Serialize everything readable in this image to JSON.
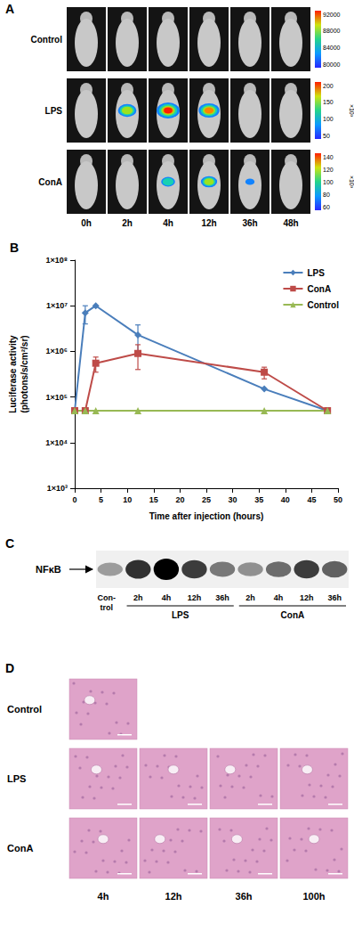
{
  "panel_labels": [
    "A",
    "B",
    "C",
    "D"
  ],
  "imaging": {
    "times": [
      "0h",
      "2h",
      "4h",
      "12h",
      "36h",
      "48h"
    ],
    "rows": [
      {
        "label": "Control",
        "signal": [
          0,
          0,
          0,
          0,
          0,
          0
        ],
        "colorbar": [
          "92000",
          "88000",
          "84000",
          "80000"
        ]
      },
      {
        "label": "LPS",
        "signal": [
          0,
          0.8,
          1,
          0.9,
          0,
          0
        ],
        "colorbar": [
          "200",
          "150",
          "100",
          "50"
        ],
        "colorbar_unit": "×10³"
      },
      {
        "label": "ConA",
        "signal": [
          0,
          0,
          0.6,
          0.7,
          0.4,
          0
        ],
        "colorbar": [
          "140",
          "120",
          "100",
          "80",
          "60"
        ],
        "colorbar_unit": "×10³"
      }
    ]
  },
  "chart_data": {
    "type": "line",
    "xlabel": "Time after injection (hours)",
    "ylabel": "Luciferase activity\n(photons/s/cm²/sr)",
    "x": [
      0,
      2,
      4,
      12,
      36,
      48
    ],
    "series": [
      {
        "name": "LPS",
        "color": "#4a7ebb",
        "marker": "diamond",
        "values": [
          50000,
          7000000,
          10000000,
          2300000,
          150000,
          50000
        ],
        "errors": [
          null,
          3000000,
          null,
          1500000,
          null,
          null
        ]
      },
      {
        "name": "ConA",
        "color": "#be4b48",
        "marker": "square",
        "values": [
          50000,
          50000,
          550000,
          900000,
          350000,
          50000
        ],
        "errors": [
          null,
          null,
          200000,
          500000,
          100000,
          null
        ]
      },
      {
        "name": "Control",
        "color": "#98b954",
        "marker": "triangle",
        "values": [
          50000,
          50000,
          50000,
          50000,
          50000,
          50000
        ],
        "errors": [
          null,
          null,
          null,
          null,
          null,
          null
        ]
      }
    ],
    "log": "y",
    "xlim": [
      0,
      50
    ],
    "xticks": [
      0,
      5,
      10,
      15,
      20,
      25,
      30,
      35,
      40,
      45,
      50
    ],
    "ylim": [
      1000,
      100000000
    ],
    "yticks": [
      {
        "value": 1000,
        "label": "1×10³"
      },
      {
        "value": 10000,
        "label": "1×10⁴"
      },
      {
        "value": 100000,
        "label": "1×10⁵"
      },
      {
        "value": 1000000,
        "label": "1×10⁶"
      },
      {
        "value": 10000000,
        "label": "1×10⁷"
      },
      {
        "value": 100000000,
        "label": "1×10⁸"
      }
    ],
    "grid": false,
    "legend": "upper right"
  },
  "blot": {
    "band_label": "NFκB",
    "control": {
      "label": "Con-\ntrol",
      "intensity": 0.35
    },
    "groups": [
      {
        "name": "LPS",
        "lanes": [
          "2h",
          "4h",
          "12h",
          "36h"
        ],
        "intensity": [
          0.8,
          1,
          0.75,
          0.5
        ]
      },
      {
        "name": "ConA",
        "lanes": [
          "2h",
          "4h",
          "12h",
          "36h"
        ],
        "intensity": [
          0.4,
          0.55,
          0.75,
          0.6
        ]
      }
    ]
  },
  "histology": {
    "times": [
      "4h",
      "12h",
      "36h",
      "100h"
    ],
    "rows": [
      {
        "label": "Control",
        "images": [
          true,
          false,
          false,
          false
        ]
      },
      {
        "label": "LPS",
        "images": [
          true,
          true,
          true,
          true
        ]
      },
      {
        "label": "ConA",
        "images": [
          true,
          true,
          true,
          true
        ]
      }
    ]
  }
}
